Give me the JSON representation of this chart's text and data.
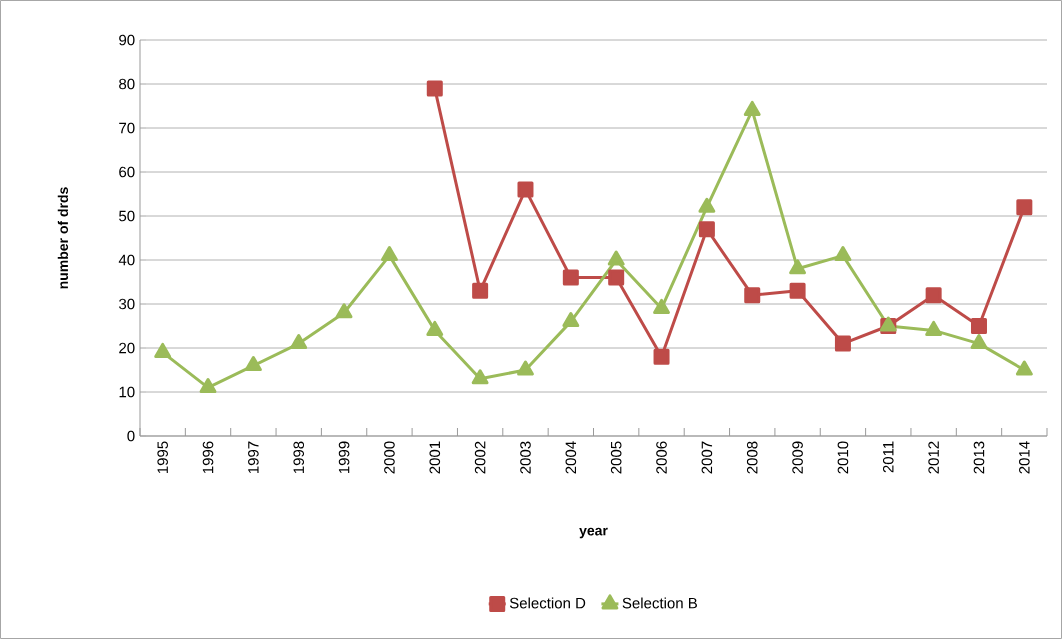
{
  "chart_data": {
    "type": "line",
    "xlabel": "year",
    "ylabel": "number of drds",
    "categories": [
      "1995",
      "1996",
      "1997",
      "1998",
      "1999",
      "2000",
      "2001",
      "2002",
      "2003",
      "2004",
      "2005",
      "2006",
      "2007",
      "2008",
      "2009",
      "2010",
      "2011",
      "2012",
      "2013",
      "2014"
    ],
    "series": [
      {
        "name": "Selection D",
        "color": "#be4b48",
        "marker": "square",
        "values": [
          null,
          null,
          null,
          null,
          null,
          null,
          79,
          33,
          56,
          36,
          36,
          18,
          47,
          32,
          33,
          21,
          25,
          32,
          25,
          52
        ]
      },
      {
        "name": "Selection B",
        "color": "#9bbb59",
        "marker": "triangle",
        "values": [
          19,
          11,
          16,
          21,
          28,
          41,
          24,
          13,
          15,
          26,
          40,
          29,
          52,
          74,
          38,
          41,
          25,
          24,
          21,
          15
        ]
      }
    ],
    "ylim": [
      0,
      90
    ],
    "yticks": [
      0,
      10,
      20,
      30,
      40,
      50,
      60,
      70,
      80,
      90
    ],
    "grid": "y",
    "legend": "bottom",
    "line_style": "solid"
  }
}
